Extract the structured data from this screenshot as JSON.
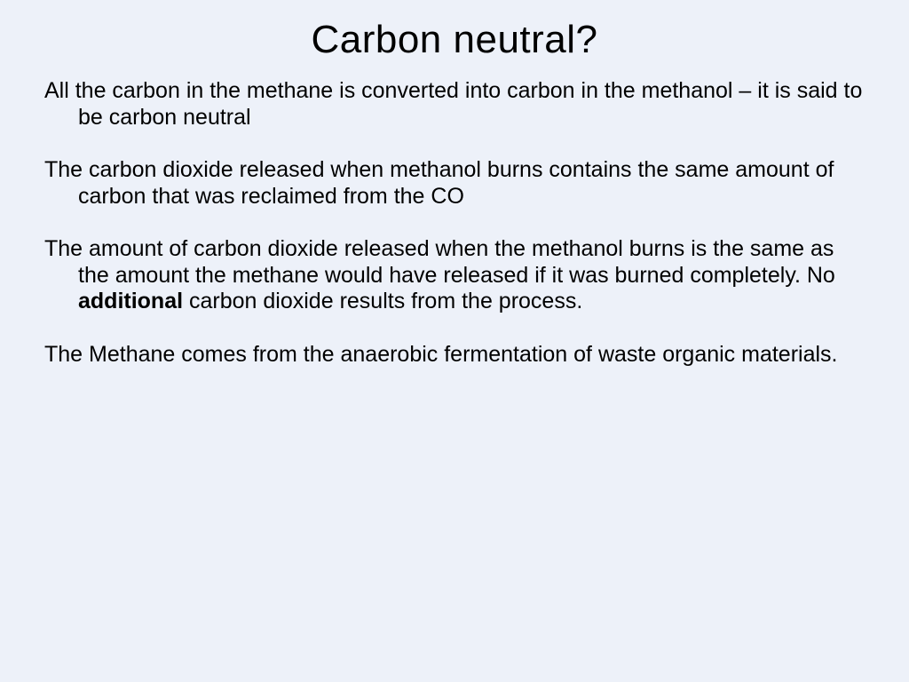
{
  "slide": {
    "title": "Carbon neutral?",
    "title_fontsize": 44,
    "body_fontsize": 25,
    "background_color": "#edf1f9",
    "text_color": "#000000",
    "font_family": "Comic Sans MS",
    "paragraphs": [
      {
        "text_before": "All the carbon in the methane is converted into carbon in the methanol – it is said to be carbon neutral",
        "bold_word": "",
        "text_after": ""
      },
      {
        "text_before": "The carbon dioxide released when methanol burns contains the same amount of carbon that was reclaimed from the CO",
        "bold_word": "",
        "text_after": ""
      },
      {
        "text_before": "The amount of carbon dioxide released when the methanol burns is the same as the amount the methane would have released if it was burned completely. No ",
        "bold_word": "additional",
        "text_after": " carbon dioxide results from the process."
      },
      {
        "text_before": "The Methane comes from the anaerobic fermentation of waste organic materials.",
        "bold_word": "",
        "text_after": ""
      }
    ]
  }
}
